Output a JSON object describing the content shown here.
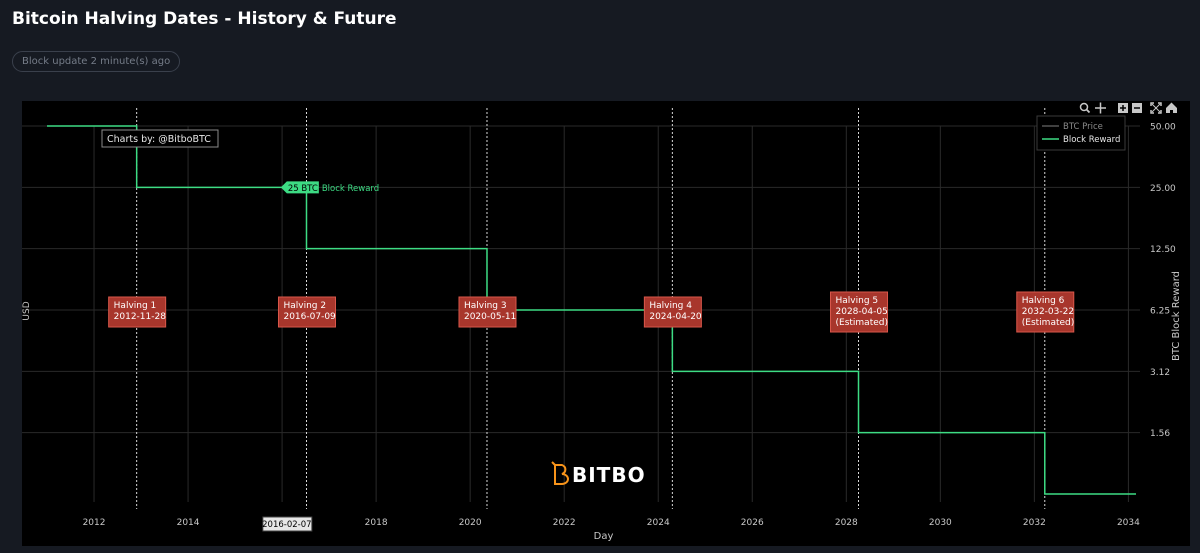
{
  "page": {
    "title": "Bitcoin Halving Dates - History & Future",
    "status": "Block update 2 minute(s) ago"
  },
  "toolbar": {
    "icons": [
      "zoom-icon",
      "pan-icon",
      "zoom-in-icon",
      "zoom-out-icon",
      "autoscale-icon",
      "reset-axes-icon"
    ]
  },
  "chart_data": {
    "type": "line",
    "xlabel": "Day",
    "ylabel_left": "USD",
    "ylabel_right": "BTC Block Reward",
    "x_range": [
      "2011-01-01",
      "2034-04-01"
    ],
    "x_ticks": [
      "2012",
      "2014",
      "2016",
      "2018",
      "2020",
      "2022",
      "2024",
      "2026",
      "2028",
      "2030",
      "2032",
      "2034"
    ],
    "y_scale": "log",
    "y_ticks": [
      "50.00",
      "25.00",
      "12.50",
      "6.25",
      "3.12",
      "1.56"
    ],
    "y_tick_values": [
      50,
      25,
      12.5,
      6.25,
      3.125,
      1.5625
    ],
    "y_range": [
      0.78125,
      50
    ],
    "grid": true,
    "legend": {
      "position": "top-right",
      "entries": [
        {
          "name": "BTC Price",
          "color": "#555555"
        },
        {
          "name": "Block Reward",
          "color": "#3ddc84"
        }
      ]
    },
    "series": [
      {
        "name": "Block Reward",
        "color": "#3ddc84",
        "step": true,
        "points": [
          {
            "x": "2011-01-01",
            "y": 50
          },
          {
            "x": "2012-11-28",
            "y": 25
          },
          {
            "x": "2016-07-09",
            "y": 12.5
          },
          {
            "x": "2020-05-11",
            "y": 6.25
          },
          {
            "x": "2024-04-20",
            "y": 3.125
          },
          {
            "x": "2028-04-05",
            "y": 1.5625
          },
          {
            "x": "2032-03-22",
            "y": 0.78125
          },
          {
            "x": "2034-03-01",
            "y": 0.78125
          }
        ]
      }
    ],
    "halvings": [
      {
        "label": "Halving 1",
        "date": "2012-11-28",
        "note": ""
      },
      {
        "label": "Halving 2",
        "date": "2016-07-09",
        "note": ""
      },
      {
        "label": "Halving 3",
        "date": "2020-05-11",
        "note": ""
      },
      {
        "label": "Halving 4",
        "date": "2024-04-20",
        "note": ""
      },
      {
        "label": "Halving 5",
        "date": "2028-04-05",
        "note": "(Estimated)"
      },
      {
        "label": "Halving 6",
        "date": "2032-03-22",
        "note": "(Estimated)"
      }
    ],
    "annotations": {
      "credit": "Charts by: @BitboBTC",
      "hover_tag": "25 BTC",
      "hover_series": "Block Reward",
      "hover_y": 25,
      "hover_x": "2016-02-07",
      "hover_x_label": "2016-02-07"
    },
    "colors": {
      "reward": "#3ddc84",
      "halving_box": "#a8362c",
      "halving_border": "#d9574a",
      "grid": "#2a2a2a",
      "logo": "#f7931a"
    },
    "watermark": "BITBO"
  }
}
